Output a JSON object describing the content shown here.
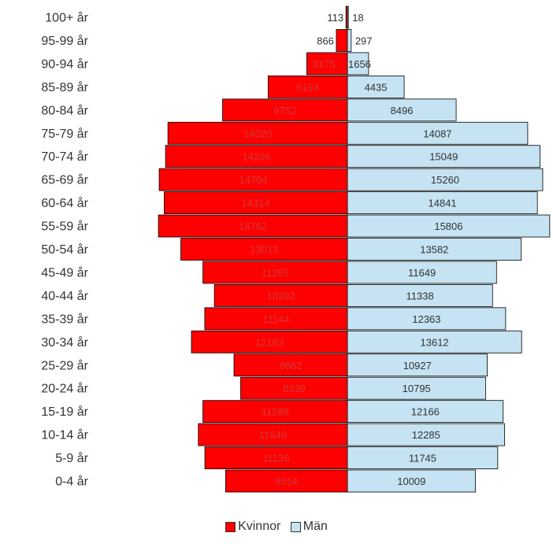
{
  "chart_data": {
    "type": "bar",
    "orientation": "horizontal",
    "layout": "population-pyramid",
    "categories": [
      "100+ år",
      "95-99 år",
      "90-94 år",
      "85-89 år",
      "80-84 år",
      "75-79 år",
      "70-74 år",
      "65-69 år",
      "60-64 år",
      "55-59 år",
      "50-54 år",
      "45-49 år",
      "40-44 år",
      "35-39 år",
      "30-34 år",
      "25-29 år",
      "20-24 år",
      "15-19 år",
      "10-14 år",
      "5-9 år",
      "0-4 år"
    ],
    "series": [
      {
        "name": "Kvinnor",
        "color": "#ff0000",
        "label_color": "#cc3a3a",
        "side": "left",
        "values": [
          113,
          866,
          3175,
          6194,
          9752,
          14020,
          14206,
          14704,
          14314,
          14762,
          13013,
          11285,
          10392,
          11144,
          12183,
          8862,
          8339,
          11289,
          11646,
          11136,
          9514
        ]
      },
      {
        "name": "Män",
        "color": "#c5e3f2",
        "label_color": "#333333",
        "side": "right",
        "values": [
          18,
          297,
          1656,
          4435,
          8496,
          14087,
          15049,
          15260,
          14841,
          15806,
          13582,
          11649,
          11338,
          12363,
          13612,
          10927,
          10795,
          12166,
          12285,
          11745,
          10009
        ]
      }
    ],
    "axis_max": 16000,
    "grid": false,
    "legend_position": "bottom-center"
  },
  "legend": {
    "items": [
      {
        "label": "Kvinnor",
        "color": "#ff0000"
      },
      {
        "label": "Män",
        "color": "#c5e3f2"
      }
    ]
  }
}
